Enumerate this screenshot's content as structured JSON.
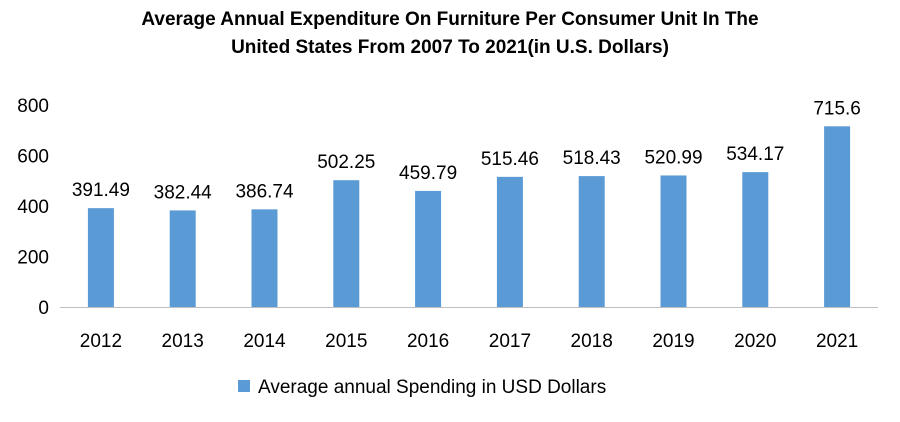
{
  "chart_data": {
    "type": "bar",
    "title_lines": [
      "Average Annual Expenditure On Furniture Per Consumer Unit In The",
      "United States From 2007 To 2021(in U.S. Dollars)"
    ],
    "categories": [
      "2012",
      "2013",
      "2014",
      "2015",
      "2016",
      "2017",
      "2018",
      "2019",
      "2020",
      "2021"
    ],
    "series": [
      {
        "name": "Average annual Spending in USD Dollars",
        "values": [
          391.49,
          382.44,
          386.74,
          502.25,
          459.79,
          515.46,
          518.43,
          520.99,
          534.17,
          715.6
        ],
        "labels": [
          "391.49",
          "382.44",
          "386.74",
          "502.25",
          "459.79",
          "515.46",
          "518.43",
          "520.99",
          "534.17",
          "715.6"
        ],
        "color": "#5b9bd5"
      }
    ],
    "yticks": [
      "0",
      "200",
      "400",
      "600",
      "800"
    ],
    "ylim": [
      0,
      800
    ],
    "grid": false,
    "legend_position": "bottom"
  }
}
